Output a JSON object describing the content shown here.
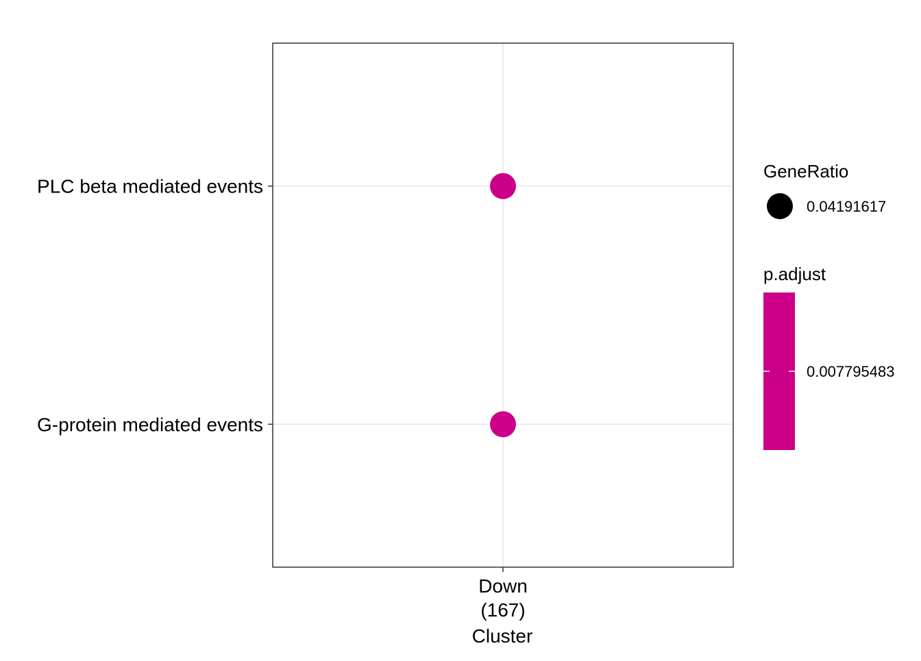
{
  "chart_data": {
    "type": "scatter",
    "subtype": "dotplot",
    "xlabel": "Cluster",
    "ylabel": "",
    "categories_x": [
      {
        "name": "Down",
        "count_label": "(167)"
      }
    ],
    "categories_y": [
      "G-protein mediated events",
      "PLC beta mediated events"
    ],
    "points": [
      {
        "x": "Down",
        "y": "PLC beta mediated events",
        "GeneRatio": 0.04191617,
        "p_adjust": 0.007795483
      },
      {
        "x": "Down",
        "y": "G-protein mediated events",
        "GeneRatio": 0.04191617,
        "p_adjust": 0.007795483
      }
    ],
    "legend": {
      "position": "right",
      "size": {
        "title": "GeneRatio",
        "entries": [
          "0.04191617"
        ]
      },
      "color": {
        "title": "p.adjust",
        "ticks": [
          "0.007795483"
        ],
        "color": "#CC0088"
      }
    },
    "grid": true,
    "point_color": "#CC0088",
    "size_key_color": "#000000"
  }
}
